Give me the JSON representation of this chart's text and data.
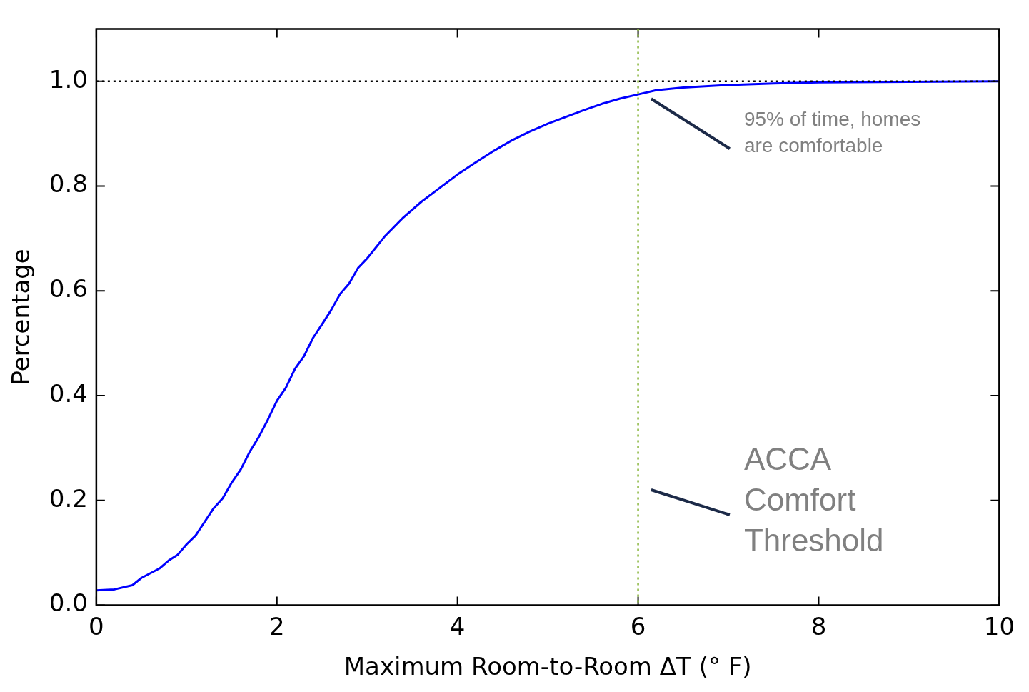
{
  "chart_data": {
    "type": "line",
    "xlabel": "Maximum Room-to-Room ΔT (° F)",
    "ylabel": "Percentage",
    "xlim": [
      0,
      10
    ],
    "ylim": [
      0,
      1.1
    ],
    "xticks": [
      0,
      2,
      4,
      6,
      8,
      10
    ],
    "yticks": [
      {
        "value": 0,
        "label": "0.0"
      },
      0.2,
      0.4,
      0.6,
      0.8,
      {
        "value": 1,
        "label": "1.0"
      }
    ],
    "grid": false,
    "legend": false,
    "marker": "none",
    "line_style": "solid",
    "series": [
      {
        "color": "#0000ff",
        "x": [
          0,
          0.2,
          0.4,
          0.5,
          0.7,
          0.8,
          0.9,
          1.0,
          1.1,
          1.2,
          1.3,
          1.4,
          1.5,
          1.6,
          1.7,
          1.8,
          1.9,
          2.0,
          2.1,
          2.2,
          2.3,
          2.4,
          2.5,
          2.6,
          2.7,
          2.8,
          2.9,
          3.0,
          3.2,
          3.4,
          3.6,
          3.8,
          4.0,
          4.2,
          4.4,
          4.6,
          4.8,
          5.0,
          5.2,
          5.4,
          5.6,
          5.8,
          6.0,
          6.2,
          6.5,
          7.0,
          7.5,
          8.0,
          9.0,
          10.0
        ],
        "values": [
          0.028,
          0.03,
          0.038,
          0.052,
          0.07,
          0.085,
          0.096,
          0.116,
          0.133,
          0.159,
          0.185,
          0.204,
          0.234,
          0.259,
          0.293,
          0.321,
          0.354,
          0.39,
          0.415,
          0.451,
          0.475,
          0.51,
          0.536,
          0.563,
          0.594,
          0.614,
          0.644,
          0.662,
          0.705,
          0.74,
          0.77,
          0.796,
          0.822,
          0.845,
          0.867,
          0.887,
          0.904,
          0.919,
          0.932,
          0.945,
          0.957,
          0.967,
          0.975,
          0.983,
          0.988,
          0.993,
          0.996,
          0.998,
          0.999,
          1.0
        ]
      }
    ],
    "ref_lines": [
      {
        "axis": "y",
        "value": 1.0,
        "color": "#000000",
        "line_style": "dotted"
      },
      {
        "axis": "x",
        "value": 6,
        "color": "#8db842",
        "line_style": "dotted"
      }
    ],
    "annotations": [
      "95% of time, homes are comfortable",
      "ACCA Comfort Threshold"
    ]
  }
}
